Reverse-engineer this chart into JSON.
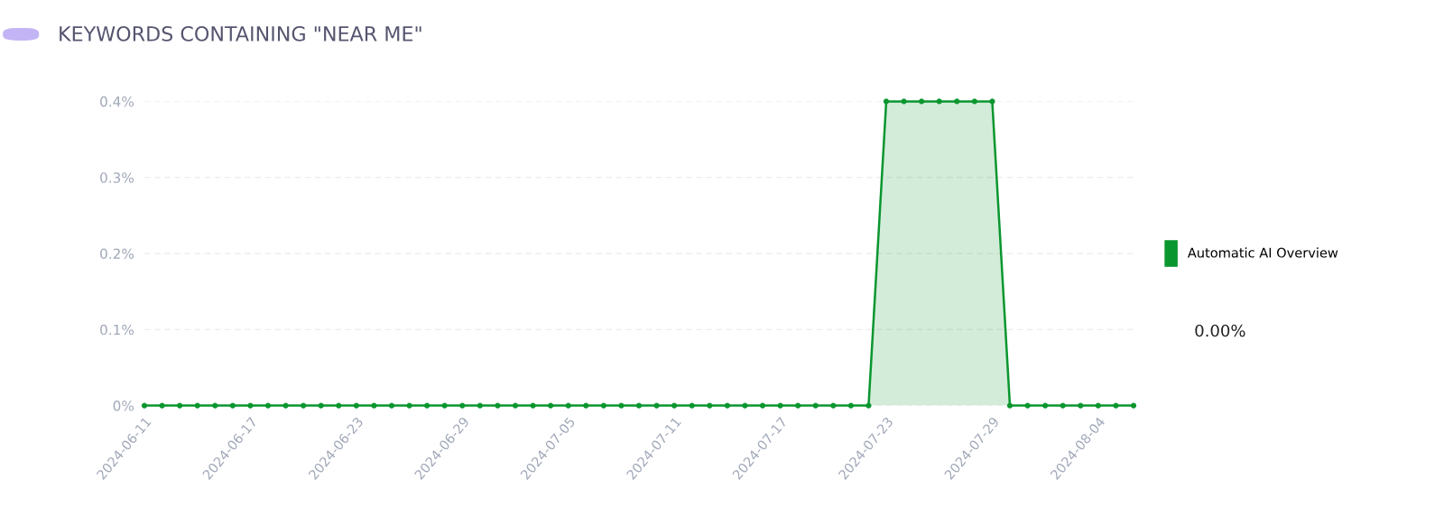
{
  "chart_data": {
    "type": "area",
    "title": "KEYWORDS CONTAINING \"NEAR ME\"",
    "x": [
      "2024-06-11",
      "2024-06-12",
      "2024-06-13",
      "2024-06-14",
      "2024-06-15",
      "2024-06-16",
      "2024-06-17",
      "2024-06-18",
      "2024-06-19",
      "2024-06-20",
      "2024-06-21",
      "2024-06-22",
      "2024-06-23",
      "2024-06-24",
      "2024-06-25",
      "2024-06-26",
      "2024-06-27",
      "2024-06-28",
      "2024-06-29",
      "2024-06-30",
      "2024-07-01",
      "2024-07-02",
      "2024-07-03",
      "2024-07-04",
      "2024-07-05",
      "2024-07-06",
      "2024-07-07",
      "2024-07-08",
      "2024-07-09",
      "2024-07-10",
      "2024-07-11",
      "2024-07-12",
      "2024-07-13",
      "2024-07-14",
      "2024-07-15",
      "2024-07-16",
      "2024-07-17",
      "2024-07-18",
      "2024-07-19",
      "2024-07-20",
      "2024-07-21",
      "2024-07-22",
      "2024-07-23",
      "2024-07-24",
      "2024-07-25",
      "2024-07-26",
      "2024-07-27",
      "2024-07-28",
      "2024-07-29",
      "2024-07-30",
      "2024-07-31",
      "2024-08-01",
      "2024-08-02",
      "2024-08-03",
      "2024-08-04",
      "2024-08-05",
      "2024-08-06"
    ],
    "series": [
      {
        "name": "Automatic AI Overview",
        "color": "#0a962f",
        "values": [
          0,
          0,
          0,
          0,
          0,
          0,
          0,
          0,
          0,
          0,
          0,
          0,
          0,
          0,
          0,
          0,
          0,
          0,
          0,
          0,
          0,
          0,
          0,
          0,
          0,
          0,
          0,
          0,
          0,
          0,
          0,
          0,
          0,
          0,
          0,
          0,
          0,
          0,
          0,
          0,
          0,
          0,
          0.4,
          0.4,
          0.4,
          0.4,
          0.4,
          0.4,
          0.4,
          0,
          0,
          0,
          0,
          0,
          0,
          0,
          0
        ]
      }
    ],
    "xlim": [
      "2024-06-11",
      "2024-08-06"
    ],
    "xticks": [
      "2024-06-11",
      "2024-06-17",
      "2024-06-23",
      "2024-06-29",
      "2024-07-05",
      "2024-07-11",
      "2024-07-17",
      "2024-07-23",
      "2024-07-29",
      "2024-08-04"
    ],
    "ylim": [
      0,
      0.4
    ],
    "yticks": [
      {
        "value": 0,
        "label": "0%"
      },
      {
        "value": 0.1,
        "label": "0.1%"
      },
      {
        "value": 0.2,
        "label": "0.2%"
      },
      {
        "value": 0.3,
        "label": "0.3%"
      },
      {
        "value": 0.4,
        "label": "0.4%"
      }
    ],
    "grid": "y",
    "legend": "right",
    "marker": "circle",
    "line_style": "solid",
    "annotations": [
      "0.00%"
    ]
  }
}
